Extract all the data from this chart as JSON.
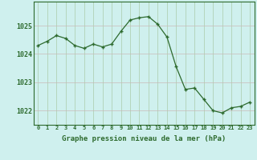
{
  "hours": [
    0,
    1,
    2,
    3,
    4,
    5,
    6,
    7,
    8,
    9,
    10,
    11,
    12,
    13,
    14,
    15,
    16,
    17,
    18,
    19,
    20,
    21,
    22,
    23
  ],
  "pressure": [
    1024.3,
    1024.45,
    1024.65,
    1024.55,
    1024.3,
    1024.2,
    1024.35,
    1024.25,
    1024.35,
    1024.8,
    1025.2,
    1025.28,
    1025.32,
    1025.05,
    1024.6,
    1023.55,
    1022.75,
    1022.8,
    1022.4,
    1022.0,
    1021.92,
    1022.1,
    1022.15,
    1022.3
  ],
  "line_color": "#2d6a2d",
  "marker": "+",
  "marker_size": 3,
  "marker_lw": 1.0,
  "line_width": 0.9,
  "bg_color": "#cff0ee",
  "grid_color_h": "#c8b8b8",
  "grid_color_v": "#aaccaa",
  "title": "Graphe pression niveau de la mer (hPa)",
  "ylim_min": 1021.5,
  "ylim_max": 1025.85,
  "yticks": [
    1022,
    1023,
    1024,
    1025
  ],
  "xtick_labels": [
    "0",
    "1",
    "2",
    "3",
    "4",
    "5",
    "6",
    "7",
    "8",
    "9",
    "10",
    "11",
    "12",
    "13",
    "14",
    "15",
    "16",
    "17",
    "18",
    "19",
    "20",
    "21",
    "22",
    "23"
  ],
  "ylabel_fontsize": 5.0,
  "xlabel_fontsize": 6.5,
  "ytick_fontsize": 6.0
}
